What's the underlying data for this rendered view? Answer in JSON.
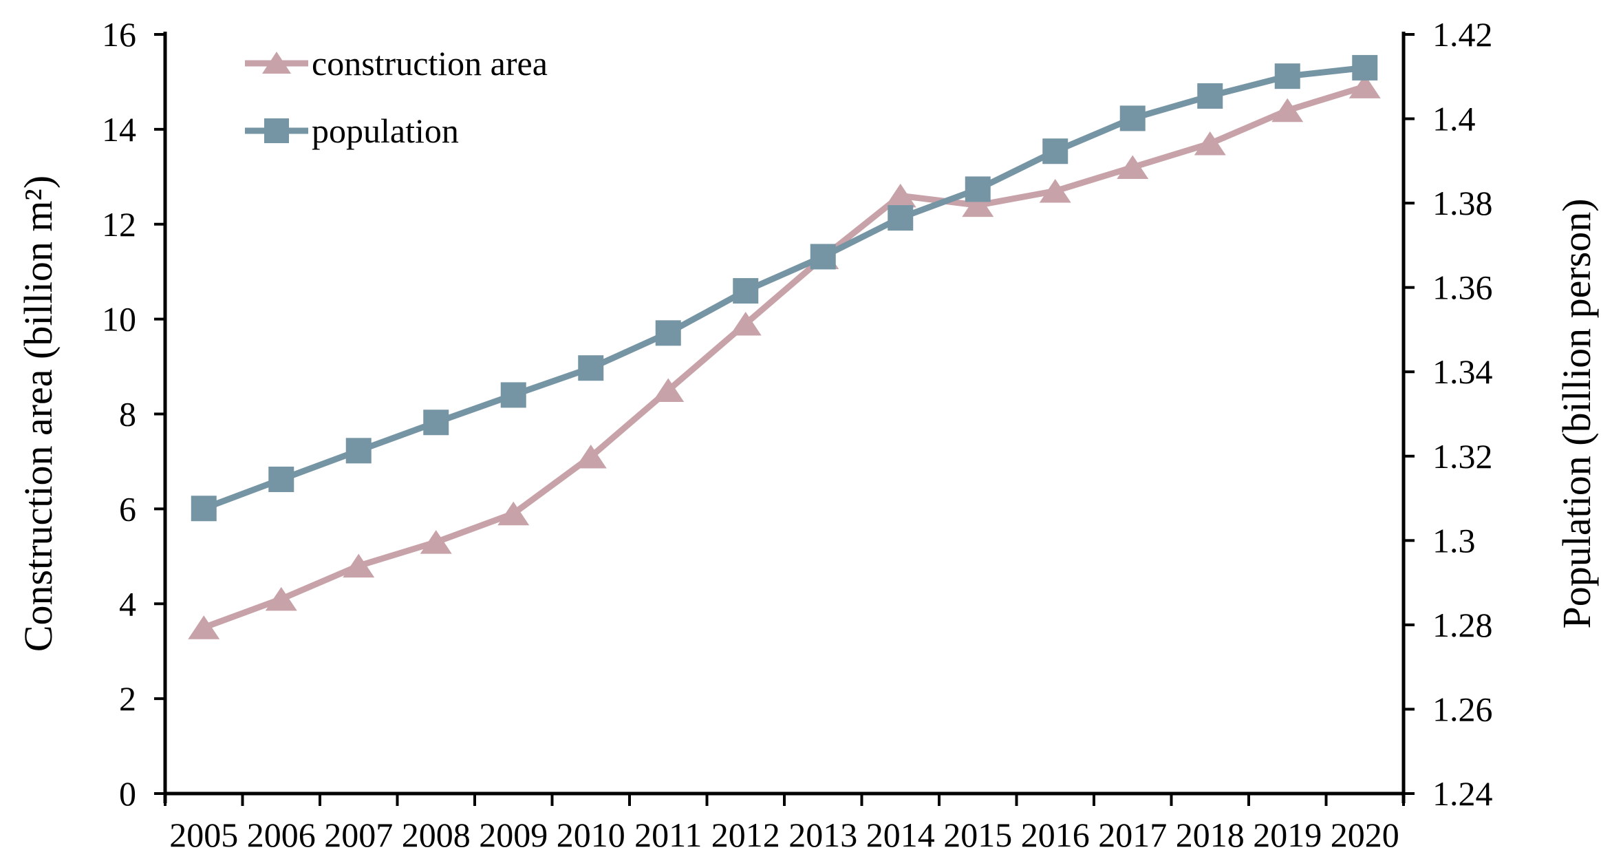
{
  "chart_data": {
    "type": "line",
    "title": "",
    "x": [
      2005,
      2006,
      2007,
      2008,
      2009,
      2010,
      2011,
      2012,
      2013,
      2014,
      2015,
      2016,
      2017,
      2018,
      2019,
      2020
    ],
    "series": [
      {
        "name": "construction area",
        "axis": "left",
        "marker": "triangle",
        "color": "#c8a2a9",
        "values": [
          3.5,
          4.1,
          4.8,
          5.3,
          5.9,
          7.1,
          8.5,
          9.9,
          11.3,
          12.6,
          12.4,
          12.7,
          13.2,
          13.7,
          14.4,
          14.9
        ]
      },
      {
        "name": "population",
        "axis": "right",
        "marker": "square",
        "color": "#7695a4",
        "values": [
          1.3076,
          1.3145,
          1.3213,
          1.328,
          1.3345,
          1.3409,
          1.3492,
          1.3592,
          1.3673,
          1.3765,
          1.3833,
          1.3923,
          1.4001,
          1.4054,
          1.4101,
          1.4121
        ]
      }
    ],
    "ylabel_left": "Construction area (billion m²)",
    "ylabel_right": "Population (billion person)",
    "xlabel": "",
    "ylim_left": [
      0,
      16
    ],
    "ylim_right": [
      1.24,
      1.42
    ],
    "yticks_left": [
      "0",
      "2",
      "4",
      "6",
      "8",
      "10",
      "12",
      "14",
      "16"
    ],
    "yticks_right": [
      "1.24",
      "1.26",
      "1.28",
      "1.3",
      "1.32",
      "1.34",
      "1.36",
      "1.38",
      "1.4",
      "1.42"
    ],
    "grid": false,
    "legend_position": "top-left-inside",
    "axis_color": "#000000",
    "text_color": "#000000"
  }
}
